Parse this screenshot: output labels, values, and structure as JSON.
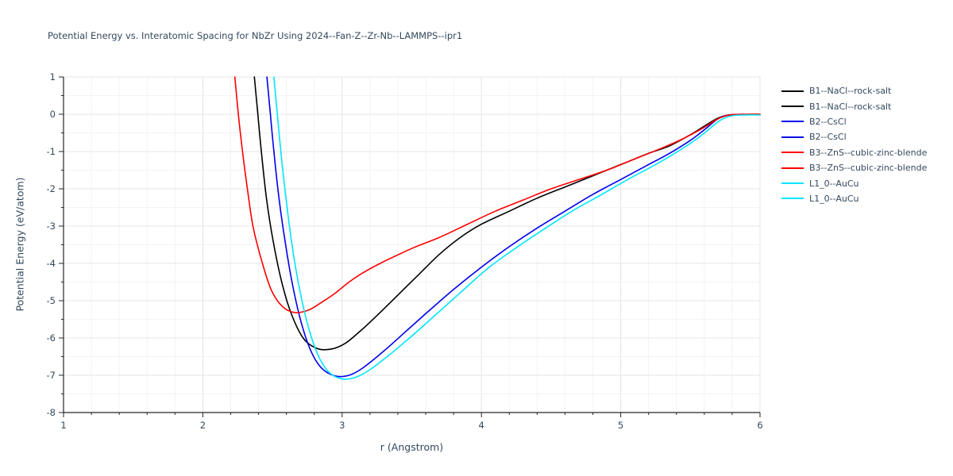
{
  "chart_data": {
    "type": "line",
    "title": "Potential Energy vs. Interatomic Spacing for NbZr Using 2024--Fan-Z--Zr-Nb--LAMMPS--ipr1",
    "xlabel": "r (Angstrom)",
    "ylabel": "Potential Energy (eV/atom)",
    "xlim": [
      1,
      6
    ],
    "ylim": [
      -8,
      1
    ],
    "x_ticks": [
      1,
      2,
      3,
      4,
      5,
      6
    ],
    "y_ticks": [
      1,
      0,
      -1,
      -2,
      -3,
      -4,
      -5,
      -6,
      -7,
      -8
    ],
    "grid": true,
    "legend_position": "right-outside",
    "text_color": "#34495e",
    "axis_color": "#262626",
    "series": [
      {
        "name": "B1--NaCl--rock-salt",
        "color": "#000000",
        "points": [
          [
            2.37,
            1.0
          ],
          [
            2.395,
            0.0
          ],
          [
            2.42,
            -1.0
          ],
          [
            2.455,
            -2.2
          ],
          [
            2.5,
            -3.3
          ],
          [
            2.56,
            -4.4
          ],
          [
            2.63,
            -5.3
          ],
          [
            2.72,
            -6.0
          ],
          [
            2.82,
            -6.28
          ],
          [
            2.92,
            -6.3
          ],
          [
            3.02,
            -6.15
          ],
          [
            3.12,
            -5.85
          ],
          [
            3.25,
            -5.4
          ],
          [
            3.4,
            -4.85
          ],
          [
            3.55,
            -4.3
          ],
          [
            3.7,
            -3.75
          ],
          [
            3.85,
            -3.3
          ],
          [
            4.0,
            -2.95
          ],
          [
            4.2,
            -2.6
          ],
          [
            4.4,
            -2.25
          ],
          [
            4.6,
            -1.95
          ],
          [
            4.8,
            -1.65
          ],
          [
            5.0,
            -1.35
          ],
          [
            5.2,
            -1.05
          ],
          [
            5.35,
            -0.85
          ],
          [
            5.5,
            -0.55
          ],
          [
            5.6,
            -0.32
          ],
          [
            5.7,
            -0.1
          ],
          [
            5.78,
            -0.02
          ],
          [
            5.9,
            -0.01
          ],
          [
            6.0,
            -0.01
          ]
        ]
      },
      {
        "name": "B2--CsCl",
        "color": "#0000ee",
        "points": [
          [
            2.46,
            1.0
          ],
          [
            2.485,
            0.0
          ],
          [
            2.51,
            -1.0
          ],
          [
            2.545,
            -2.2
          ],
          [
            2.59,
            -3.4
          ],
          [
            2.64,
            -4.5
          ],
          [
            2.7,
            -5.5
          ],
          [
            2.77,
            -6.3
          ],
          [
            2.85,
            -6.8
          ],
          [
            2.95,
            -7.02
          ],
          [
            3.05,
            -7.0
          ],
          [
            3.15,
            -6.8
          ],
          [
            3.3,
            -6.35
          ],
          [
            3.45,
            -5.85
          ],
          [
            3.6,
            -5.35
          ],
          [
            3.8,
            -4.7
          ],
          [
            4.0,
            -4.1
          ],
          [
            4.2,
            -3.55
          ],
          [
            4.4,
            -3.05
          ],
          [
            4.6,
            -2.6
          ],
          [
            4.8,
            -2.15
          ],
          [
            5.0,
            -1.75
          ],
          [
            5.2,
            -1.35
          ],
          [
            5.35,
            -1.05
          ],
          [
            5.5,
            -0.7
          ],
          [
            5.6,
            -0.42
          ],
          [
            5.7,
            -0.12
          ],
          [
            5.78,
            -0.02
          ],
          [
            5.9,
            -0.01
          ],
          [
            6.0,
            -0.01
          ]
        ]
      },
      {
        "name": "B3--ZnS--cubic-zinc-blende",
        "color": "#ff0000",
        "points": [
          [
            2.23,
            1.0
          ],
          [
            2.255,
            0.0
          ],
          [
            2.285,
            -1.0
          ],
          [
            2.32,
            -2.0
          ],
          [
            2.36,
            -3.0
          ],
          [
            2.42,
            -3.9
          ],
          [
            2.49,
            -4.7
          ],
          [
            2.57,
            -5.15
          ],
          [
            2.66,
            -5.32
          ],
          [
            2.76,
            -5.25
          ],
          [
            2.85,
            -5.05
          ],
          [
            2.95,
            -4.8
          ],
          [
            3.05,
            -4.5
          ],
          [
            3.15,
            -4.25
          ],
          [
            3.3,
            -3.95
          ],
          [
            3.5,
            -3.6
          ],
          [
            3.7,
            -3.3
          ],
          [
            3.9,
            -2.95
          ],
          [
            4.1,
            -2.6
          ],
          [
            4.3,
            -2.3
          ],
          [
            4.5,
            -2.0
          ],
          [
            4.7,
            -1.75
          ],
          [
            4.9,
            -1.5
          ],
          [
            5.1,
            -1.2
          ],
          [
            5.3,
            -0.9
          ],
          [
            5.45,
            -0.65
          ],
          [
            5.6,
            -0.35
          ],
          [
            5.7,
            -0.12
          ],
          [
            5.78,
            -0.02
          ],
          [
            5.9,
            0.0
          ],
          [
            6.0,
            0.0
          ]
        ]
      },
      {
        "name": "L1_0--AuCu",
        "color": "#00e5ff",
        "points": [
          [
            2.51,
            1.0
          ],
          [
            2.535,
            0.0
          ],
          [
            2.56,
            -1.0
          ],
          [
            2.595,
            -2.2
          ],
          [
            2.64,
            -3.5
          ],
          [
            2.69,
            -4.6
          ],
          [
            2.75,
            -5.6
          ],
          [
            2.82,
            -6.4
          ],
          [
            2.9,
            -6.9
          ],
          [
            3.0,
            -7.1
          ],
          [
            3.1,
            -7.05
          ],
          [
            3.2,
            -6.85
          ],
          [
            3.35,
            -6.42
          ],
          [
            3.5,
            -5.95
          ],
          [
            3.65,
            -5.45
          ],
          [
            3.85,
            -4.78
          ],
          [
            4.05,
            -4.12
          ],
          [
            4.25,
            -3.58
          ],
          [
            4.45,
            -3.08
          ],
          [
            4.65,
            -2.6
          ],
          [
            4.85,
            -2.18
          ],
          [
            5.05,
            -1.75
          ],
          [
            5.25,
            -1.35
          ],
          [
            5.4,
            -1.02
          ],
          [
            5.55,
            -0.65
          ],
          [
            5.65,
            -0.35
          ],
          [
            5.72,
            -0.15
          ],
          [
            5.8,
            -0.04
          ],
          [
            5.9,
            -0.02
          ],
          [
            6.0,
            -0.02
          ]
        ]
      }
    ],
    "legend": [
      {
        "label": "B1--NaCl--rock-salt",
        "color": "#000000"
      },
      {
        "label": "B1--NaCl--rock-salt",
        "color": "#000000"
      },
      {
        "label": "B2--CsCl",
        "color": "#0000ee"
      },
      {
        "label": "B2--CsCl",
        "color": "#0000ee"
      },
      {
        "label": "B3--ZnS--cubic-zinc-blende",
        "color": "#ff0000"
      },
      {
        "label": "B3--ZnS--cubic-zinc-blende",
        "color": "#ff0000"
      },
      {
        "label": "L1_0--AuCu",
        "color": "#00e5ff"
      },
      {
        "label": "L1_0--AuCu",
        "color": "#00e5ff"
      }
    ]
  }
}
